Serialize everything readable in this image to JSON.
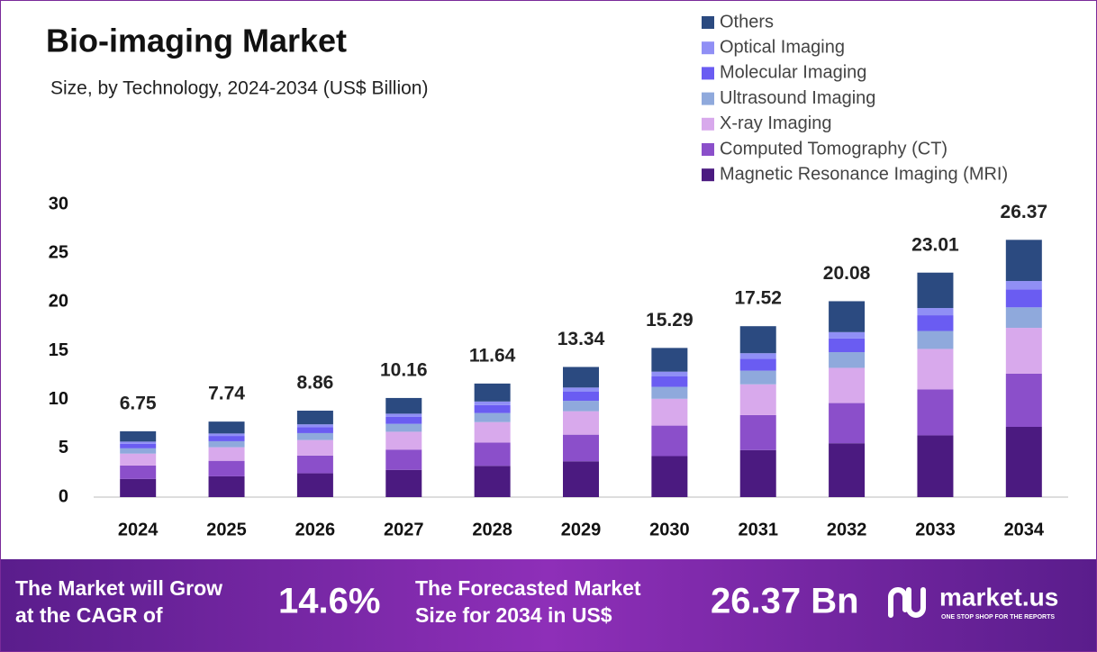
{
  "chart_data": {
    "type": "stacked_bar",
    "title": "Bio-imaging Market",
    "subtitle": "Size, by Technology, 2024-2034 (US$ Billion)",
    "categories": [
      "2024",
      "2025",
      "2026",
      "2027",
      "2028",
      "2029",
      "2030",
      "2031",
      "2032",
      "2033",
      "2034"
    ],
    "series": [
      {
        "name": "Magnetic Resonance Imaging (MRI)",
        "color": "#4b1a80",
        "values": [
          1.86,
          2.13,
          2.44,
          2.79,
          3.2,
          3.67,
          4.2,
          4.82,
          5.52,
          6.33,
          7.2
        ]
      },
      {
        "name": "Computed Tomography (CT)",
        "color": "#8b4fca",
        "values": [
          1.38,
          1.59,
          1.82,
          2.08,
          2.39,
          2.73,
          3.13,
          3.59,
          4.12,
          4.72,
          5.45
        ]
      },
      {
        "name": "X-ray Imaging",
        "color": "#d8a9ec",
        "values": [
          1.22,
          1.39,
          1.59,
          1.83,
          2.1,
          2.4,
          2.75,
          3.15,
          3.61,
          4.14,
          4.7
        ]
      },
      {
        "name": "Ultrasound Imaging",
        "color": "#8fa9dc",
        "values": [
          0.54,
          0.62,
          0.71,
          0.81,
          0.93,
          1.07,
          1.22,
          1.4,
          1.61,
          1.84,
          2.1
        ]
      },
      {
        "name": "Molecular Imaging",
        "color": "#6a5cf2",
        "values": [
          0.47,
          0.54,
          0.62,
          0.71,
          0.81,
          0.93,
          1.07,
          1.23,
          1.41,
          1.61,
          1.85
        ]
      },
      {
        "name": "Optical Imaging",
        "color": "#908ff5",
        "values": [
          0.22,
          0.25,
          0.28,
          0.33,
          0.37,
          0.43,
          0.49,
          0.56,
          0.64,
          0.74,
          0.85
        ]
      },
      {
        "name": "Others",
        "color": "#2b4a80",
        "values": [
          1.06,
          1.22,
          1.4,
          1.61,
          1.84,
          2.11,
          2.43,
          2.77,
          3.17,
          3.63,
          4.22
        ]
      }
    ],
    "totals": [
      6.75,
      7.74,
      8.86,
      10.16,
      11.64,
      13.34,
      15.29,
      17.52,
      20.08,
      23.01,
      26.37
    ],
    "ylim": [
      0,
      30
    ],
    "yticks": [
      0,
      5,
      10,
      15,
      20,
      25,
      30
    ],
    "grid": false
  },
  "banner": {
    "cagr_text": [
      "The Market will Grow",
      "at the CAGR of"
    ],
    "cagr": "14.6%",
    "forecast_text": [
      "The Forecasted Market",
      "Size for 2034 in US$"
    ],
    "forecast": "26.37 Bn",
    "logo": "market.us",
    "tagline": "ONE STOP SHOP FOR THE REPORTS"
  }
}
